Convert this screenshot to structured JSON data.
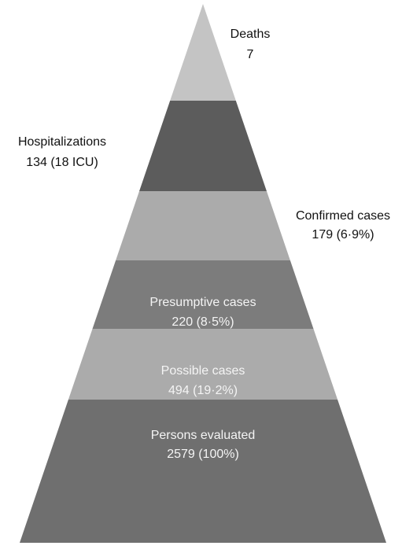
{
  "levels": [
    {
      "label": "Deaths",
      "value": "7"
    },
    {
      "label": "Hospitalizations",
      "value": "134 (18 ICU)"
    },
    {
      "label": "Confirmed cases",
      "value": "179 (6·9%)"
    },
    {
      "label": "Presumptive cases",
      "value": "220 (8·5%)"
    },
    {
      "label": "Possible cases",
      "value": "494 (19·2%)"
    },
    {
      "label": "Persons evaluated",
      "value": "2579 (100%)"
    }
  ]
}
